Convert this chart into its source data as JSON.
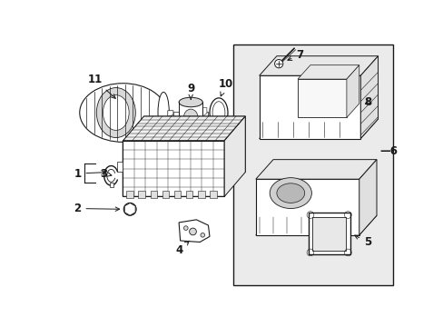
{
  "bg_color": "#ffffff",
  "lc": "#1a1a1a",
  "lw": 0.7,
  "box_fill": "#ebebeb",
  "part_fill": "#ffffff",
  "shade_fill": "#d8d8d8",
  "labels": [
    "1",
    "2",
    "3",
    "4",
    "5",
    "6",
    "7",
    "8",
    "9",
    "10",
    "11"
  ]
}
